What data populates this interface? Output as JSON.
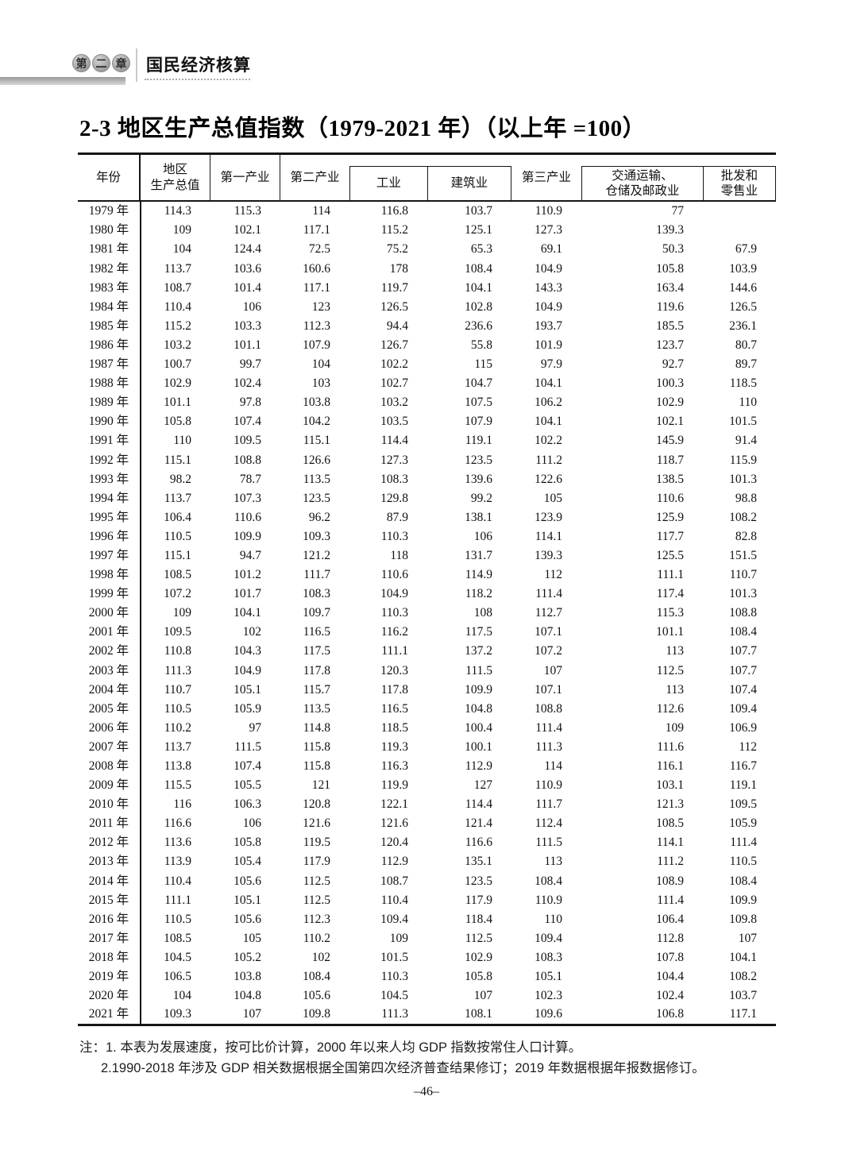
{
  "page": {
    "chapter_badge": [
      "第",
      "二",
      "章"
    ],
    "chapter_title": "国民经济核算",
    "title": "2-3 地区生产总值指数（1979-2021 年）（以上年 =100）",
    "page_number": "–46–"
  },
  "table": {
    "header": {
      "year": "年份",
      "gross_regional_product": "地区\n生产总值",
      "primary_industry": "第一产业",
      "secondary_industry": "第二产业",
      "industry": "工业",
      "construction": "建筑业",
      "tertiary_industry": "第三产业",
      "transport_storage_post": "交通运输、\n仓储及邮政业",
      "wholesale_retail": "批发和\n零售业"
    },
    "rows": [
      {
        "year": "1979 年",
        "values": [
          "114.3",
          "115.3",
          "114",
          "116.8",
          "103.7",
          "110.9",
          "77",
          ""
        ]
      },
      {
        "year": "1980 年",
        "values": [
          "109",
          "102.1",
          "117.1",
          "115.2",
          "125.1",
          "127.3",
          "139.3",
          ""
        ]
      },
      {
        "year": "1981 年",
        "values": [
          "104",
          "124.4",
          "72.5",
          "75.2",
          "65.3",
          "69.1",
          "50.3",
          "67.9"
        ]
      },
      {
        "year": "1982 年",
        "values": [
          "113.7",
          "103.6",
          "160.6",
          "178",
          "108.4",
          "104.9",
          "105.8",
          "103.9"
        ]
      },
      {
        "year": "1983 年",
        "values": [
          "108.7",
          "101.4",
          "117.1",
          "119.7",
          "104.1",
          "143.3",
          "163.4",
          "144.6"
        ]
      },
      {
        "year": "1984 年",
        "values": [
          "110.4",
          "106",
          "123",
          "126.5",
          "102.8",
          "104.9",
          "119.6",
          "126.5"
        ]
      },
      {
        "year": "1985 年",
        "values": [
          "115.2",
          "103.3",
          "112.3",
          "94.4",
          "236.6",
          "193.7",
          "185.5",
          "236.1"
        ]
      },
      {
        "year": "1986 年",
        "values": [
          "103.2",
          "101.1",
          "107.9",
          "126.7",
          "55.8",
          "101.9",
          "123.7",
          "80.7"
        ]
      },
      {
        "year": "1987 年",
        "values": [
          "100.7",
          "99.7",
          "104",
          "102.2",
          "115",
          "97.9",
          "92.7",
          "89.7"
        ]
      },
      {
        "year": "1988 年",
        "values": [
          "102.9",
          "102.4",
          "103",
          "102.7",
          "104.7",
          "104.1",
          "100.3",
          "118.5"
        ]
      },
      {
        "year": "1989 年",
        "values": [
          "101.1",
          "97.8",
          "103.8",
          "103.2",
          "107.5",
          "106.2",
          "102.9",
          "110"
        ]
      },
      {
        "year": "1990 年",
        "values": [
          "105.8",
          "107.4",
          "104.2",
          "103.5",
          "107.9",
          "104.1",
          "102.1",
          "101.5"
        ]
      },
      {
        "year": "1991 年",
        "values": [
          "110",
          "109.5",
          "115.1",
          "114.4",
          "119.1",
          "102.2",
          "145.9",
          "91.4"
        ]
      },
      {
        "year": "1992 年",
        "values": [
          "115.1",
          "108.8",
          "126.6",
          "127.3",
          "123.5",
          "111.2",
          "118.7",
          "115.9"
        ]
      },
      {
        "year": "1993 年",
        "values": [
          "98.2",
          "78.7",
          "113.5",
          "108.3",
          "139.6",
          "122.6",
          "138.5",
          "101.3"
        ]
      },
      {
        "year": "1994 年",
        "values": [
          "113.7",
          "107.3",
          "123.5",
          "129.8",
          "99.2",
          "105",
          "110.6",
          "98.8"
        ]
      },
      {
        "year": "1995 年",
        "values": [
          "106.4",
          "110.6",
          "96.2",
          "87.9",
          "138.1",
          "123.9",
          "125.9",
          "108.2"
        ]
      },
      {
        "year": "1996 年",
        "values": [
          "110.5",
          "109.9",
          "109.3",
          "110.3",
          "106",
          "114.1",
          "117.7",
          "82.8"
        ]
      },
      {
        "year": "1997 年",
        "values": [
          "115.1",
          "94.7",
          "121.2",
          "118",
          "131.7",
          "139.3",
          "125.5",
          "151.5"
        ]
      },
      {
        "year": "1998 年",
        "values": [
          "108.5",
          "101.2",
          "111.7",
          "110.6",
          "114.9",
          "112",
          "111.1",
          "110.7"
        ]
      },
      {
        "year": "1999 年",
        "values": [
          "107.2",
          "101.7",
          "108.3",
          "104.9",
          "118.2",
          "111.4",
          "117.4",
          "101.3"
        ]
      },
      {
        "year": "2000 年",
        "values": [
          "109",
          "104.1",
          "109.7",
          "110.3",
          "108",
          "112.7",
          "115.3",
          "108.8"
        ]
      },
      {
        "year": "2001 年",
        "values": [
          "109.5",
          "102",
          "116.5",
          "116.2",
          "117.5",
          "107.1",
          "101.1",
          "108.4"
        ]
      },
      {
        "year": "2002 年",
        "values": [
          "110.8",
          "104.3",
          "117.5",
          "111.1",
          "137.2",
          "107.2",
          "113",
          "107.7"
        ]
      },
      {
        "year": "2003 年",
        "values": [
          "111.3",
          "104.9",
          "117.8",
          "120.3",
          "111.5",
          "107",
          "112.5",
          "107.7"
        ]
      },
      {
        "year": "2004 年",
        "values": [
          "110.7",
          "105.1",
          "115.7",
          "117.8",
          "109.9",
          "107.1",
          "113",
          "107.4"
        ]
      },
      {
        "year": "2005 年",
        "values": [
          "110.5",
          "105.9",
          "113.5",
          "116.5",
          "104.8",
          "108.8",
          "112.6",
          "109.4"
        ]
      },
      {
        "year": "2006 年",
        "values": [
          "110.2",
          "97",
          "114.8",
          "118.5",
          "100.4",
          "111.4",
          "109",
          "106.9"
        ]
      },
      {
        "year": "2007 年",
        "values": [
          "113.7",
          "111.5",
          "115.8",
          "119.3",
          "100.1",
          "111.3",
          "111.6",
          "112"
        ]
      },
      {
        "year": "2008 年",
        "values": [
          "113.8",
          "107.4",
          "115.8",
          "116.3",
          "112.9",
          "114",
          "116.1",
          "116.7"
        ]
      },
      {
        "year": "2009 年",
        "values": [
          "115.5",
          "105.5",
          "121",
          "119.9",
          "127",
          "110.9",
          "103.1",
          "119.1"
        ]
      },
      {
        "year": "2010 年",
        "values": [
          "116",
          "106.3",
          "120.8",
          "122.1",
          "114.4",
          "111.7",
          "121.3",
          "109.5"
        ]
      },
      {
        "year": "2011 年",
        "values": [
          "116.6",
          "106",
          "121.6",
          "121.6",
          "121.4",
          "112.4",
          "108.5",
          "105.9"
        ]
      },
      {
        "year": "2012 年",
        "values": [
          "113.6",
          "105.8",
          "119.5",
          "120.4",
          "116.6",
          "111.5",
          "114.1",
          "111.4"
        ]
      },
      {
        "year": "2013 年",
        "values": [
          "113.9",
          "105.4",
          "117.9",
          "112.9",
          "135.1",
          "113",
          "111.2",
          "110.5"
        ]
      },
      {
        "year": "2014 年",
        "values": [
          "110.4",
          "105.6",
          "112.5",
          "108.7",
          "123.5",
          "108.4",
          "108.9",
          "108.4"
        ]
      },
      {
        "year": "2015 年",
        "values": [
          "111.1",
          "105.1",
          "112.5",
          "110.4",
          "117.9",
          "110.9",
          "111.4",
          "109.9"
        ]
      },
      {
        "year": "2016 年",
        "values": [
          "110.5",
          "105.6",
          "112.3",
          "109.4",
          "118.4",
          "110",
          "106.4",
          "109.8"
        ]
      },
      {
        "year": "2017 年",
        "values": [
          "108.5",
          "105",
          "110.2",
          "109",
          "112.5",
          "109.4",
          "112.8",
          "107"
        ]
      },
      {
        "year": "2018 年",
        "values": [
          "104.5",
          "105.2",
          "102",
          "101.5",
          "102.9",
          "108.3",
          "107.8",
          "104.1"
        ]
      },
      {
        "year": "2019 年",
        "values": [
          "106.5",
          "103.8",
          "108.4",
          "110.3",
          "105.8",
          "105.1",
          "104.4",
          "108.2"
        ]
      },
      {
        "year": "2020 年",
        "values": [
          "104",
          "104.8",
          "105.6",
          "104.5",
          "107",
          "102.3",
          "102.4",
          "103.7"
        ]
      },
      {
        "year": "2021 年",
        "values": [
          "109.3",
          "107",
          "109.8",
          "111.3",
          "108.1",
          "109.6",
          "106.8",
          "117.1"
        ]
      }
    ]
  },
  "notes": {
    "label": "注：",
    "item1": "1. 本表为发展速度，按可比价计算，2000 年以来人均 GDP 指数按常住人口计算。",
    "item2": "2.1990-2018 年涉及 GDP 相关数据根据全国第四次经济普查结果修订；2019 年数据根据年报数据修订。"
  }
}
